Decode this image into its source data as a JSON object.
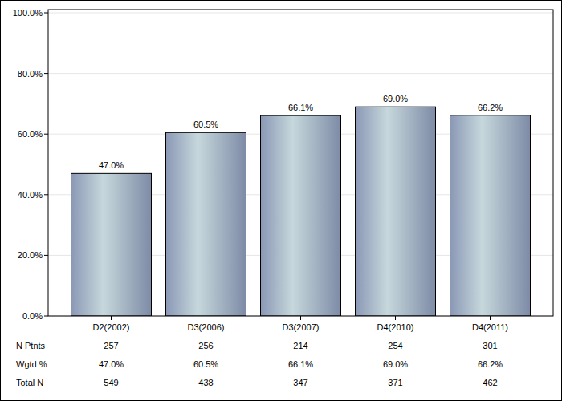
{
  "chart_data": {
    "type": "bar",
    "categories": [
      "D2(2002)",
      "D3(2006)",
      "D3(2007)",
      "D4(2010)",
      "D4(2011)"
    ],
    "values": [
      47.0,
      60.5,
      66.1,
      69.0,
      66.2
    ],
    "value_labels": [
      "47.0%",
      "60.5%",
      "66.1%",
      "69.0%",
      "66.2%"
    ],
    "data_labels": true,
    "color": "#c6d8dc",
    "ylim": [
      0,
      100
    ],
    "yticks": [
      {
        "value": 0,
        "label": "0.0%"
      },
      {
        "value": 20,
        "label": "20.0%"
      },
      {
        "value": 40,
        "label": "40.0%"
      },
      {
        "value": 60,
        "label": "60.0%"
      },
      {
        "value": 80,
        "label": "80.0%"
      },
      {
        "value": 100,
        "label": "100.0%"
      }
    ],
    "grid": true,
    "table": [
      {
        "label": "N Ptnts",
        "cells": [
          257,
          256,
          214,
          254,
          301
        ]
      },
      {
        "label": "Wgtd %",
        "cells": [
          "47.0%",
          "60.5%",
          "66.1%",
          "69.0%",
          "66.2%"
        ]
      },
      {
        "label": "Total N",
        "cells": [
          549,
          438,
          347,
          371,
          462
        ]
      }
    ]
  }
}
